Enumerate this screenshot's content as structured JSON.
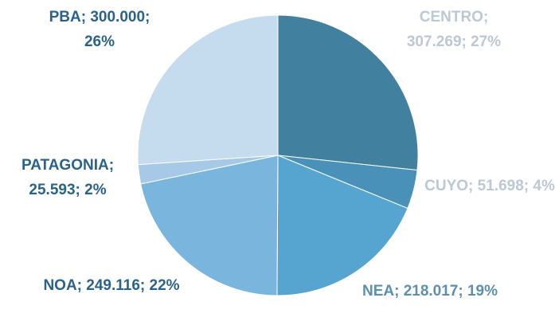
{
  "chart_data": {
    "type": "pie",
    "categories": [
      "CENTRO",
      "CUYO",
      "NEA",
      "NOA",
      "PATAGONIA",
      "PBA"
    ],
    "values": [
      307269,
      51698,
      218017,
      249116,
      25593,
      300000
    ],
    "value_labels": [
      "CENTRO; 307.269; 27%",
      "CUYO; 51.698; 4%",
      "NEA; 218.017; 19%",
      "NOA; 249.116; 22%",
      "PATAGONIA; 25.593; 2%",
      "PBA; 300.000; 26%"
    ],
    "colors": [
      "#41809f",
      "#4a91b9",
      "#56a5d0",
      "#79b5dd",
      "#a5c9e7",
      "#c5dbee"
    ],
    "label_colors": [
      "#bcc8d3",
      "#bcc8d3",
      "#5d8fae",
      "#2a6389",
      "#2a6389",
      "#2a6389"
    ]
  }
}
